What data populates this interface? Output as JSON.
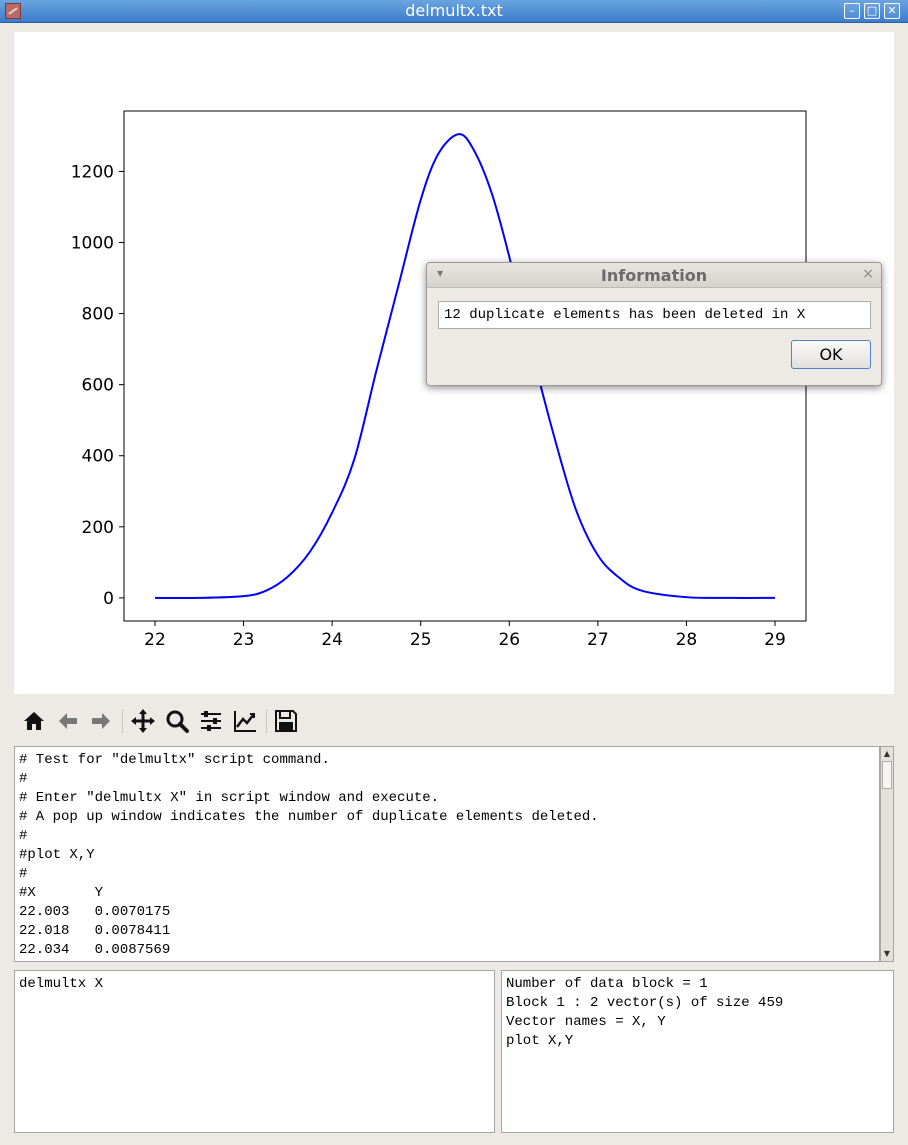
{
  "window": {
    "title": "delmultx.txt",
    "buttons": {
      "minimize": "–",
      "maximize": "□",
      "close": "✕"
    }
  },
  "toolbar": {
    "icons": [
      "home-icon",
      "back-arrow-icon",
      "forward-arrow-icon",
      "pan-icon",
      "zoom-icon",
      "configure-subplots-icon",
      "edit-curves-icon",
      "save-icon"
    ]
  },
  "script_editor": {
    "lines": [
      "# Test for \"delmultx\" script command.",
      "#",
      "# Enter \"delmultx X\" in script window and execute.",
      "# A pop up window indicates the number of duplicate elements deleted.",
      "#",
      "#plot X,Y",
      "#",
      "#X       Y",
      "22.003   0.0070175",
      "22.018   0.0078411",
      "22.034   0.0087569"
    ]
  },
  "command_window": {
    "text": "delmultx X"
  },
  "info_window": {
    "lines": [
      "Number of data block = 1",
      "Block 1 : 2 vector(s) of size 459",
      "Vector names = X, Y",
      "plot X,Y"
    ]
  },
  "dialog": {
    "title": "Information",
    "message": "12 duplicate elements has been deleted in X",
    "ok_label": "OK"
  },
  "chart_data": {
    "type": "line",
    "title": "",
    "xlabel": "",
    "ylabel": "",
    "xlim": [
      21.65,
      29.35
    ],
    "ylim": [
      -65,
      1370
    ],
    "xticks": [
      "22",
      "23",
      "24",
      "25",
      "26",
      "27",
      "28",
      "29"
    ],
    "yticks": [
      "0",
      "200",
      "400",
      "600",
      "800",
      "1000",
      "1200"
    ],
    "grid": false,
    "color": "#0000ff",
    "series": [
      {
        "x": [
          22.0,
          22.5,
          23.0,
          23.25,
          23.5,
          23.75,
          24.0,
          24.25,
          24.5,
          24.75,
          25.0,
          25.2,
          25.43,
          25.6,
          25.8,
          26.0,
          26.25,
          26.5,
          26.75,
          27.0,
          27.25,
          27.5,
          28.0,
          28.5,
          29.0
        ],
        "y": [
          0,
          0,
          5,
          20,
          60,
          130,
          240,
          390,
          640,
          880,
          1120,
          1250,
          1305,
          1260,
          1140,
          960,
          700,
          460,
          250,
          120,
          55,
          20,
          2,
          0,
          0
        ]
      }
    ]
  }
}
